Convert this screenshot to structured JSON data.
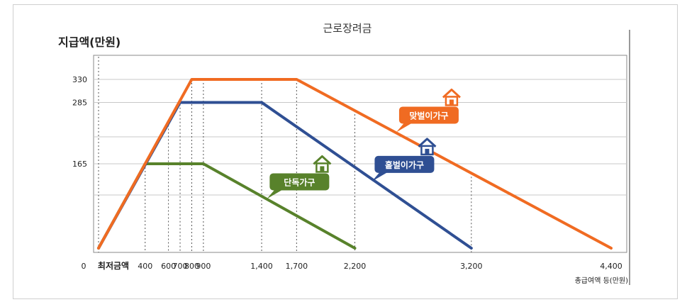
{
  "chart_data": {
    "type": "line",
    "title": "근로장려금",
    "ylabel": "지급액(만원)",
    "xlabel": "총급여액 등(만원)",
    "min_wage_label": "최저금액",
    "origin_label": "0",
    "xlim": [
      0,
      4400
    ],
    "ylim": [
      0,
      330
    ],
    "x_ticks": [
      {
        "value": 400,
        "label": "400"
      },
      {
        "value": 600,
        "label": "600"
      },
      {
        "value": 700,
        "label": "700"
      },
      {
        "value": 800,
        "label": "800"
      },
      {
        "value": 900,
        "label": "900"
      },
      {
        "value": 1400,
        "label": "1,400"
      },
      {
        "value": 1700,
        "label": "1,700"
      },
      {
        "value": 2200,
        "label": "2,200"
      },
      {
        "value": 3200,
        "label": "3,200"
      },
      {
        "value": 4400,
        "label": "4,400"
      }
    ],
    "y_ticks": [
      {
        "value": 165,
        "label": "165"
      },
      {
        "value": 285,
        "label": "285"
      },
      {
        "value": 330,
        "label": "330"
      }
    ],
    "series": [
      {
        "name": "맞벌이가구",
        "color": "#f06b22",
        "x": [
          0,
          800,
          1700,
          4400
        ],
        "y": [
          0,
          330,
          330,
          0
        ]
      },
      {
        "name": "홑벌이가구",
        "color": "#2f4f93",
        "x": [
          0,
          700,
          1400,
          3200
        ],
        "y": [
          0,
          285,
          285,
          0
        ]
      },
      {
        "name": "단독가구",
        "color": "#58822b",
        "x": [
          0,
          400,
          900,
          2200
        ],
        "y": [
          0,
          165,
          165,
          0
        ]
      }
    ],
    "grid": true
  }
}
